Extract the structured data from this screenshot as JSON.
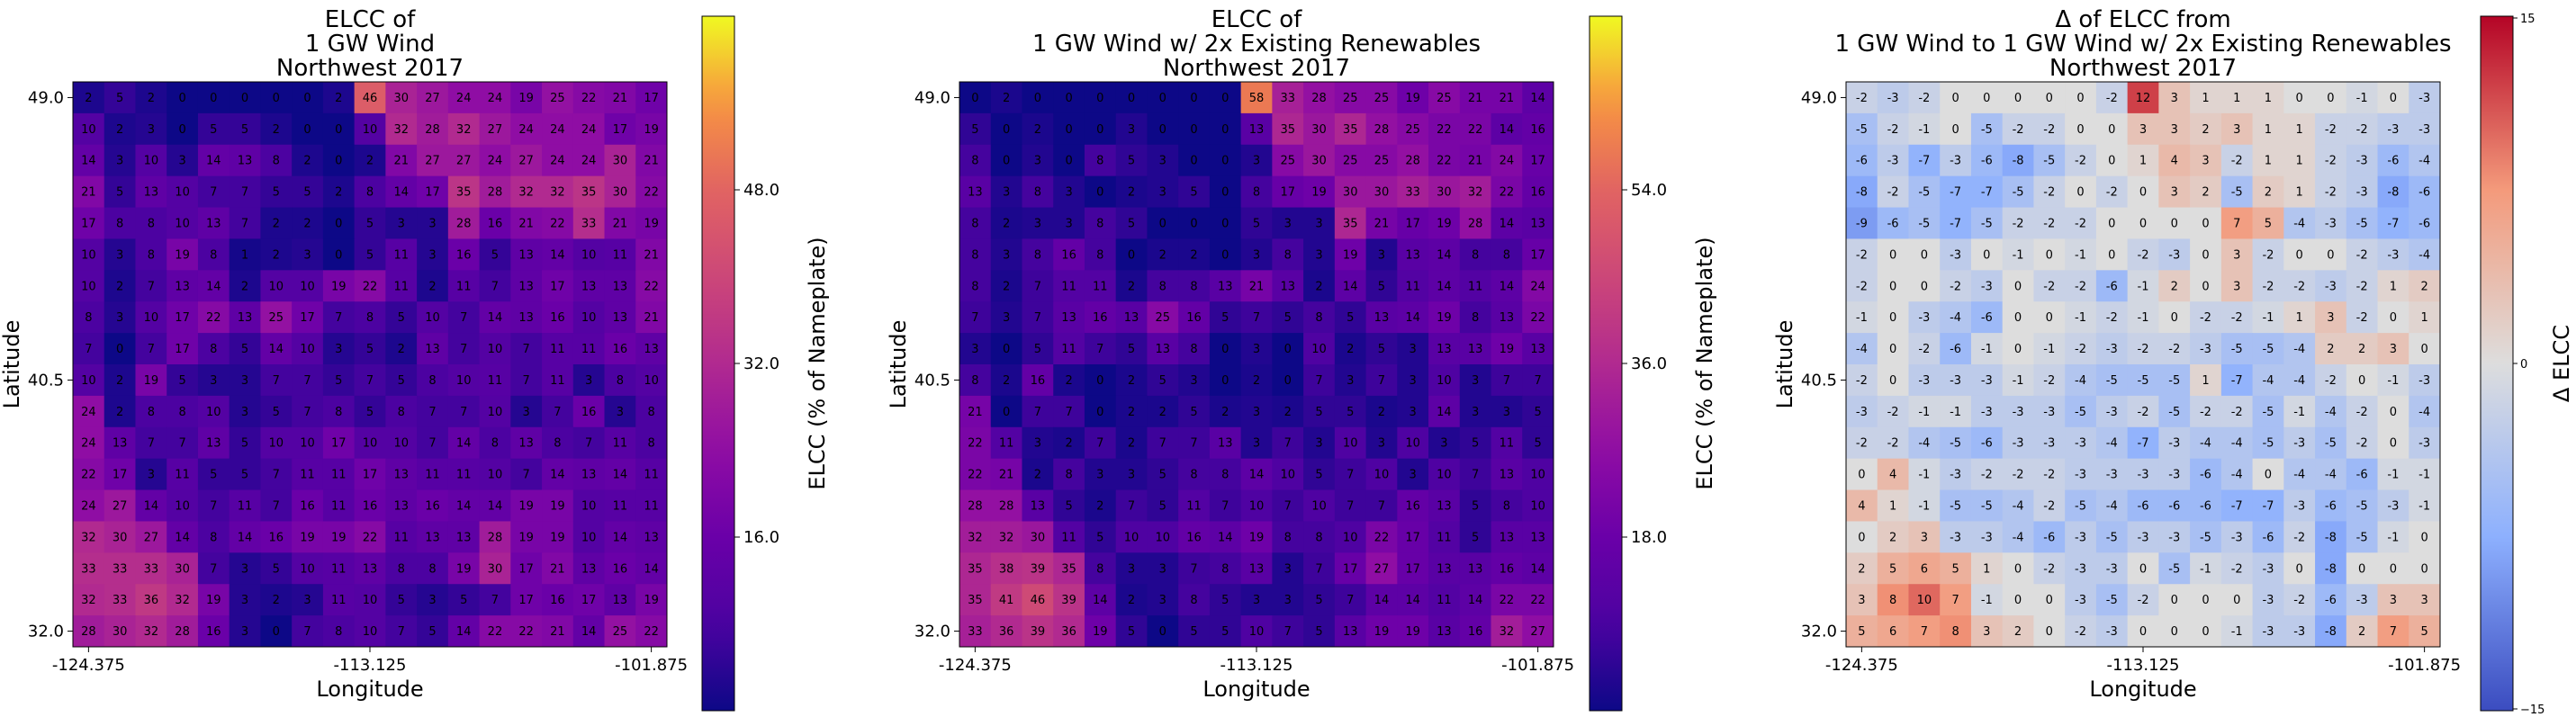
{
  "colors": {
    "plasma_low": "#0d0887",
    "plasma_high": "#f0f921",
    "diverging_low": "#3b4cc0",
    "diverging_mid": "#dddddd",
    "diverging_high": "#b40426"
  },
  "chart_data": [
    {
      "type": "heatmap",
      "title": [
        "ELCC of",
        "1 GW Wind",
        "Northwest 2017"
      ],
      "xlabel": "Longitude",
      "ylabel": "Latitude",
      "x_ticks": [
        "-124.375",
        "-113.125",
        "-101.875"
      ],
      "y_ticks": [
        "49.0",
        "40.5",
        "32.0"
      ],
      "colormap": "plasma",
      "colorbar_label": "ELCC (% of Nameplate)",
      "colorbar_ticks": [
        "16.0",
        "32.0",
        "48.0"
      ],
      "vmin": 0,
      "vmax": 64,
      "rows_top_to_bottom": [
        [
          2,
          5,
          2,
          0,
          0,
          0,
          0,
          0,
          2,
          46,
          30,
          27,
          24,
          24,
          19,
          25,
          22,
          21,
          17
        ],
        [
          10,
          2,
          3,
          0,
          5,
          5,
          2,
          0,
          0,
          10,
          32,
          28,
          32,
          27,
          24,
          24,
          24,
          17,
          19
        ],
        [
          14,
          3,
          10,
          3,
          14,
          13,
          8,
          2,
          0,
          2,
          21,
          27,
          27,
          24,
          27,
          24,
          24,
          30,
          21
        ],
        [
          21,
          5,
          13,
          10,
          7,
          7,
          5,
          5,
          2,
          8,
          14,
          17,
          35,
          28,
          32,
          32,
          35,
          30,
          22
        ],
        [
          17,
          8,
          8,
          10,
          13,
          7,
          2,
          2,
          0,
          5,
          3,
          3,
          28,
          16,
          21,
          22,
          33,
          21,
          19
        ],
        [
          10,
          3,
          8,
          19,
          8,
          1,
          2,
          3,
          0,
          5,
          11,
          3,
          16,
          5,
          13,
          14,
          10,
          11,
          21
        ],
        [
          10,
          2,
          7,
          13,
          14,
          2,
          10,
          10,
          19,
          22,
          11,
          2,
          11,
          7,
          13,
          17,
          13,
          13,
          22
        ],
        [
          8,
          3,
          10,
          17,
          22,
          13,
          25,
          17,
          7,
          8,
          5,
          10,
          7,
          14,
          13,
          16,
          10,
          13,
          21
        ],
        [
          7,
          0,
          7,
          17,
          8,
          5,
          14,
          10,
          3,
          5,
          2,
          13,
          7,
          10,
          7,
          11,
          11,
          16,
          13
        ],
        [
          10,
          2,
          19,
          5,
          3,
          3,
          7,
          7,
          5,
          7,
          5,
          8,
          10,
          11,
          7,
          11,
          3,
          8,
          10
        ],
        [
          24,
          2,
          8,
          8,
          10,
          3,
          5,
          7,
          8,
          5,
          8,
          7,
          7,
          10,
          3,
          7,
          16,
          3,
          8
        ],
        [
          24,
          13,
          7,
          7,
          13,
          5,
          10,
          10,
          17,
          10,
          10,
          7,
          14,
          8,
          13,
          8,
          7,
          11,
          8
        ],
        [
          22,
          17,
          3,
          11,
          5,
          5,
          7,
          11,
          11,
          17,
          13,
          11,
          11,
          10,
          7,
          14,
          13,
          14,
          11
        ],
        [
          24,
          27,
          14,
          10,
          7,
          11,
          7,
          16,
          11,
          16,
          13,
          16,
          14,
          14,
          19,
          19,
          10,
          11,
          11
        ],
        [
          32,
          30,
          27,
          14,
          8,
          14,
          16,
          19,
          19,
          22,
          11,
          13,
          13,
          28,
          19,
          19,
          10,
          14,
          13
        ],
        [
          33,
          33,
          33,
          30,
          7,
          3,
          5,
          10,
          11,
          13,
          8,
          8,
          19,
          30,
          17,
          21,
          13,
          16,
          14
        ],
        [
          32,
          33,
          36,
          32,
          19,
          3,
          2,
          3,
          11,
          10,
          5,
          3,
          5,
          7,
          17,
          16,
          17,
          13,
          19
        ],
        [
          28,
          30,
          32,
          28,
          16,
          3,
          0,
          7,
          8,
          10,
          7,
          5,
          14,
          22,
          22,
          21,
          14,
          25,
          22
        ]
      ]
    },
    {
      "type": "heatmap",
      "title": [
        "ELCC of",
        "1 GW Wind w/ 2x Existing Renewables",
        "Northwest 2017"
      ],
      "xlabel": "Longitude",
      "ylabel": "Latitude",
      "x_ticks": [
        "-124.375",
        "-113.125",
        "-101.875"
      ],
      "y_ticks": [
        "49.0",
        "40.5",
        "32.0"
      ],
      "colormap": "plasma",
      "colorbar_label": "ELCC (% of Nameplate)",
      "colorbar_ticks": [
        "18.0",
        "36.0",
        "54.0"
      ],
      "vmin": 0,
      "vmax": 72,
      "rows_top_to_bottom": [
        [
          0,
          2,
          0,
          0,
          0,
          0,
          0,
          0,
          0,
          58,
          33,
          28,
          25,
          25,
          19,
          25,
          21,
          21,
          14
        ],
        [
          5,
          0,
          2,
          0,
          0,
          3,
          0,
          0,
          0,
          13,
          35,
          30,
          35,
          28,
          25,
          22,
          22,
          14,
          16
        ],
        [
          8,
          0,
          3,
          0,
          8,
          5,
          3,
          0,
          0,
          3,
          25,
          30,
          25,
          25,
          28,
          22,
          21,
          24,
          17
        ],
        [
          13,
          3,
          8,
          3,
          0,
          2,
          3,
          5,
          0,
          8,
          17,
          19,
          30,
          30,
          33,
          30,
          32,
          22,
          16
        ],
        [
          8,
          2,
          3,
          3,
          8,
          5,
          0,
          0,
          0,
          5,
          3,
          3,
          35,
          21,
          17,
          19,
          28,
          14,
          13
        ],
        [
          8,
          3,
          8,
          16,
          8,
          0,
          2,
          2,
          0,
          3,
          8,
          3,
          19,
          3,
          13,
          14,
          8,
          8,
          17
        ],
        [
          8,
          2,
          7,
          11,
          11,
          2,
          8,
          8,
          13,
          21,
          13,
          2,
          14,
          5,
          11,
          14,
          11,
          14,
          24
        ],
        [
          7,
          3,
          7,
          13,
          16,
          13,
          25,
          16,
          5,
          7,
          5,
          8,
          5,
          13,
          14,
          19,
          8,
          13,
          22
        ],
        [
          3,
          0,
          5,
          11,
          7,
          5,
          13,
          8,
          0,
          3,
          0,
          10,
          2,
          5,
          3,
          13,
          13,
          19,
          13
        ],
        [
          8,
          2,
          16,
          2,
          0,
          2,
          5,
          3,
          0,
          2,
          0,
          7,
          3,
          7,
          3,
          10,
          3,
          7,
          7
        ],
        [
          21,
          0,
          7,
          7,
          0,
          2,
          2,
          5,
          2,
          3,
          2,
          5,
          5,
          2,
          3,
          14,
          3,
          3,
          5
        ],
        [
          22,
          11,
          3,
          2,
          7,
          2,
          7,
          7,
          13,
          3,
          7,
          3,
          10,
          3,
          10,
          3,
          5,
          11,
          5
        ],
        [
          22,
          21,
          2,
          8,
          3,
          3,
          5,
          8,
          8,
          14,
          10,
          5,
          7,
          10,
          3,
          10,
          7,
          13,
          10
        ],
        [
          28,
          28,
          13,
          5,
          2,
          7,
          5,
          11,
          7,
          10,
          7,
          10,
          7,
          7,
          16,
          13,
          5,
          8,
          10
        ],
        [
          32,
          32,
          30,
          11,
          5,
          10,
          10,
          16,
          14,
          19,
          8,
          8,
          10,
          22,
          17,
          11,
          5,
          13,
          13
        ],
        [
          35,
          38,
          39,
          35,
          8,
          3,
          3,
          7,
          8,
          13,
          3,
          7,
          17,
          27,
          17,
          13,
          13,
          16,
          14
        ],
        [
          35,
          41,
          46,
          39,
          14,
          2,
          3,
          8,
          5,
          3,
          3,
          5,
          7,
          14,
          14,
          11,
          14,
          22,
          22
        ],
        [
          33,
          36,
          39,
          36,
          19,
          5,
          0,
          5,
          5,
          10,
          7,
          5,
          13,
          19,
          19,
          13,
          16,
          32,
          27
        ]
      ]
    },
    {
      "type": "heatmap",
      "title": [
        "Δ of ELCC from",
        "1 GW Wind to 1 GW Wind w/ 2x Existing Renewables",
        "Northwest 2017"
      ],
      "xlabel": "Longitude",
      "ylabel": "Latitude",
      "x_ticks": [
        "-124.375",
        "-113.125",
        "-101.875"
      ],
      "y_ticks": [
        "49.0",
        "40.5",
        "32.0"
      ],
      "colormap": "coolwarm",
      "colorbar_label": "Δ ELCC",
      "colorbar_ticks": [
        "15",
        "0",
        "−15"
      ],
      "vmin": -15,
      "vmax": 15,
      "rows_top_to_bottom": [
        [
          -2,
          -3,
          -2,
          0,
          0,
          0,
          0,
          0,
          -2,
          12,
          3,
          1,
          1,
          1,
          0,
          0,
          -1,
          0,
          -3
        ],
        [
          -5,
          -2,
          -1,
          0,
          -5,
          -2,
          -2,
          0,
          0,
          3,
          3,
          2,
          3,
          1,
          1,
          -2,
          -2,
          -3,
          -3
        ],
        [
          -6,
          -3,
          -7,
          -3,
          -6,
          -8,
          -5,
          -2,
          0,
          1,
          4,
          3,
          -2,
          1,
          1,
          -2,
          -3,
          -6,
          -4
        ],
        [
          -8,
          -2,
          -5,
          -7,
          -7,
          -5,
          -2,
          0,
          -2,
          0,
          3,
          2,
          -5,
          2,
          1,
          -2,
          -3,
          -8,
          -6
        ],
        [
          -9,
          -6,
          -5,
          -7,
          -5,
          -2,
          -2,
          -2,
          0,
          0,
          0,
          0,
          7,
          5,
          -4,
          -3,
          -5,
          -7,
          -6
        ],
        [
          -2,
          0,
          0,
          -3,
          0,
          -1,
          0,
          -1,
          0,
          -2,
          -3,
          0,
          3,
          -2,
          0,
          0,
          -2,
          -3,
          -4
        ],
        [
          -2,
          0,
          0,
          -2,
          -3,
          0,
          -2,
          -2,
          -6,
          -1,
          2,
          0,
          3,
          -2,
          -2,
          -3,
          -2,
          1,
          2
        ],
        [
          -1,
          0,
          -3,
          -4,
          -6,
          0,
          0,
          -1,
          -2,
          -1,
          0,
          -2,
          -2,
          -1,
          1,
          3,
          -2,
          0,
          1
        ],
        [
          -4,
          0,
          -2,
          -6,
          -1,
          0,
          -1,
          -2,
          -3,
          -2,
          -2,
          -3,
          -5,
          -5,
          -4,
          2,
          2,
          3,
          0
        ],
        [
          -2,
          0,
          -3,
          -3,
          -3,
          -1,
          -2,
          -4,
          -5,
          -5,
          -5,
          1,
          -7,
          -4,
          -4,
          -2,
          0,
          -1,
          -3
        ],
        [
          -3,
          -2,
          -1,
          -1,
          -3,
          -3,
          -3,
          -5,
          -3,
          -2,
          -5,
          -2,
          -2,
          -5,
          -1,
          -4,
          -2,
          0,
          -4
        ],
        [
          -2,
          -2,
          -4,
          -5,
          -6,
          -3,
          -3,
          -3,
          -4,
          -7,
          -3,
          -4,
          -4,
          -5,
          -3,
          -5,
          -2,
          0,
          -3
        ],
        [
          0,
          4,
          -1,
          -3,
          -2,
          -2,
          -2,
          -3,
          -3,
          -3,
          -3,
          -6,
          -4,
          0,
          -4,
          -4,
          -6,
          -1,
          -1
        ],
        [
          4,
          1,
          -1,
          -5,
          -5,
          -4,
          -2,
          -5,
          -4,
          -6,
          -6,
          -6,
          -7,
          -7,
          -3,
          -6,
          -5,
          -3,
          -1
        ],
        [
          0,
          2,
          3,
          -3,
          -3,
          -4,
          -6,
          -3,
          -5,
          -3,
          -3,
          -5,
          -3,
          -6,
          -2,
          -8,
          -5,
          -1,
          0
        ],
        [
          2,
          5,
          6,
          5,
          1,
          0,
          -2,
          -3,
          -3,
          0,
          -5,
          -1,
          -2,
          -3,
          0,
          -8,
          0,
          0,
          0
        ],
        [
          3,
          8,
          10,
          7,
          -1,
          0,
          0,
          -3,
          -5,
          -2,
          0,
          0,
          0,
          -3,
          -2,
          -6,
          -3,
          3,
          3
        ],
        [
          5,
          6,
          7,
          8,
          3,
          2,
          0,
          -2,
          -3,
          0,
          0,
          0,
          -1,
          -3,
          -3,
          -8,
          2,
          7,
          5
        ]
      ]
    }
  ]
}
